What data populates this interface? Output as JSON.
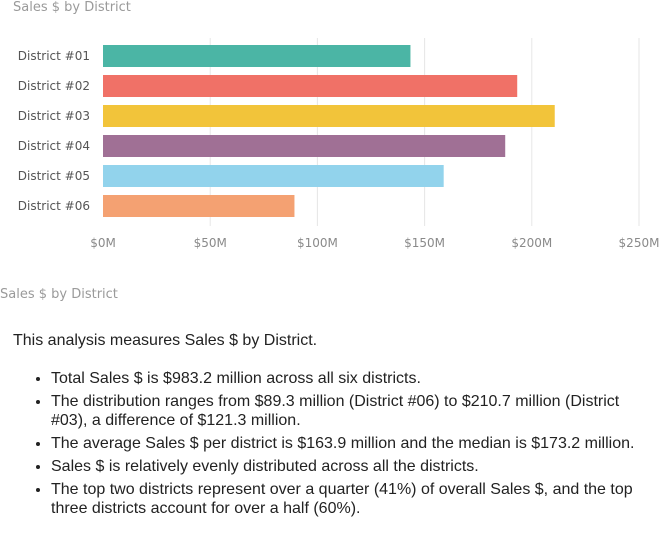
{
  "chart_data": {
    "type": "bar",
    "orientation": "horizontal",
    "title": "Sales $ by District",
    "categories": [
      "District #01",
      "District #02",
      "District #03",
      "District #04",
      "District #05",
      "District #06"
    ],
    "values": [
      143.4,
      193.2,
      210.7,
      187.6,
      158.9,
      89.3
    ],
    "unit": "$M",
    "colors": [
      "#4bb5a5",
      "#f07167",
      "#f2c43a",
      "#a07095",
      "#92d3ec",
      "#f4a172"
    ],
    "xlim": [
      0,
      250
    ],
    "xticks": [
      {
        "value": 0,
        "label": "$0M"
      },
      {
        "value": 50,
        "label": "$50M"
      },
      {
        "value": 100,
        "label": "$100M"
      },
      {
        "value": 150,
        "label": "$150M"
      },
      {
        "value": 200,
        "label": "$200M"
      },
      {
        "value": 250,
        "label": "$250M"
      }
    ],
    "grid": true,
    "xlabel": "",
    "ylabel": ""
  },
  "narrative": {
    "title": "Sales $ by District",
    "intro": "This analysis measures Sales $ by District.",
    "bullets": [
      "Total Sales $ is $983.2 million across all six districts.",
      "The distribution ranges from $89.3 million (District #06) to $210.7 million (District #03), a difference of $121.3 million.",
      "The average Sales $ per district is $163.9 million and the median is $173.2 million.",
      "Sales $ is relatively evenly distributed across all the districts.",
      "The top two districts represent over a quarter (41%) of overall Sales $, and the top three districts account for over a half (60%)."
    ]
  }
}
